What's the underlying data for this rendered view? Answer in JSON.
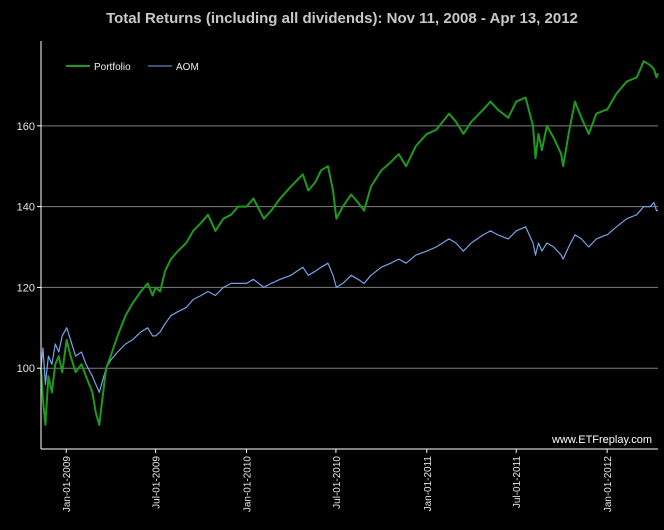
{
  "chart_data": {
    "type": "line",
    "title": "Total Returns (including all dividends): Nov 11, 2008 - Apr 13, 2012",
    "watermark": "www.ETFreplay.com",
    "x_tick_labels": [
      "Jan-01-2009",
      "Jul-01-2009",
      "Jan-01-2010",
      "Jul-01-2010",
      "Jan-01-2011",
      "Jul-01-2011",
      "Jan-01-2012"
    ],
    "x_tick_dates": [
      "2009-01-01",
      "2009-07-01",
      "2010-01-01",
      "2010-07-01",
      "2011-01-01",
      "2011-07-01",
      "2012-01-01"
    ],
    "xlim": [
      "2008-11-11",
      "2012-04-13"
    ],
    "ylim": [
      80,
      181
    ],
    "y_ticks": [
      100,
      120,
      140,
      160
    ],
    "grid": "horizontal",
    "legend_position": "top-left",
    "background": "#000000",
    "colors": {
      "axes": "#ffffff",
      "grid": "#7f7f7f",
      "title": "#c8c8c8"
    },
    "series": [
      {
        "name": "Portfolio",
        "color": "#1e9a1e",
        "points": [
          [
            "2008-11-11",
            100
          ],
          [
            "2008-11-15",
            92
          ],
          [
            "2008-11-20",
            86
          ],
          [
            "2008-11-26",
            98
          ],
          [
            "2008-12-03",
            94
          ],
          [
            "2008-12-10",
            101
          ],
          [
            "2008-12-17",
            103
          ],
          [
            "2008-12-24",
            99
          ],
          [
            "2009-01-02",
            107
          ],
          [
            "2009-01-10",
            103
          ],
          [
            "2009-01-20",
            99
          ],
          [
            "2009-02-01",
            101
          ],
          [
            "2009-02-10",
            98
          ],
          [
            "2009-02-23",
            94
          ],
          [
            "2009-03-02",
            89
          ],
          [
            "2009-03-09",
            86
          ],
          [
            "2009-03-16",
            93
          ],
          [
            "2009-03-23",
            100
          ],
          [
            "2009-04-01",
            103
          ],
          [
            "2009-04-15",
            108
          ],
          [
            "2009-05-01",
            113
          ],
          [
            "2009-05-15",
            116
          ],
          [
            "2009-06-01",
            119
          ],
          [
            "2009-06-15",
            121
          ],
          [
            "2009-06-25",
            118
          ],
          [
            "2009-07-01",
            120
          ],
          [
            "2009-07-10",
            119
          ],
          [
            "2009-07-20",
            124
          ],
          [
            "2009-08-01",
            127
          ],
          [
            "2009-08-15",
            129
          ],
          [
            "2009-09-01",
            131
          ],
          [
            "2009-09-15",
            134
          ],
          [
            "2009-10-01",
            136
          ],
          [
            "2009-10-15",
            138
          ],
          [
            "2009-10-30",
            134
          ],
          [
            "2009-11-15",
            137
          ],
          [
            "2009-12-01",
            138
          ],
          [
            "2009-12-15",
            140
          ],
          [
            "2010-01-01",
            140
          ],
          [
            "2010-01-15",
            142
          ],
          [
            "2010-02-05",
            137
          ],
          [
            "2010-02-20",
            139
          ],
          [
            "2010-03-10",
            142
          ],
          [
            "2010-04-01",
            145
          ],
          [
            "2010-04-25",
            148
          ],
          [
            "2010-05-06",
            144
          ],
          [
            "2010-05-20",
            146
          ],
          [
            "2010-06-01",
            149
          ],
          [
            "2010-06-15",
            150
          ],
          [
            "2010-06-25",
            144
          ],
          [
            "2010-07-02",
            137
          ],
          [
            "2010-07-15",
            140
          ],
          [
            "2010-08-01",
            143
          ],
          [
            "2010-08-15",
            141
          ],
          [
            "2010-08-27",
            139
          ],
          [
            "2010-09-10",
            145
          ],
          [
            "2010-10-01",
            149
          ],
          [
            "2010-10-20",
            151
          ],
          [
            "2010-11-05",
            153
          ],
          [
            "2010-11-20",
            150
          ],
          [
            "2010-12-10",
            155
          ],
          [
            "2011-01-01",
            158
          ],
          [
            "2011-01-20",
            159
          ],
          [
            "2011-02-15",
            163
          ],
          [
            "2011-03-01",
            161
          ],
          [
            "2011-03-16",
            158
          ],
          [
            "2011-04-01",
            161
          ],
          [
            "2011-04-25",
            164
          ],
          [
            "2011-05-10",
            166
          ],
          [
            "2011-05-25",
            164
          ],
          [
            "2011-06-15",
            162
          ],
          [
            "2011-07-01",
            166
          ],
          [
            "2011-07-20",
            167
          ],
          [
            "2011-08-04",
            160
          ],
          [
            "2011-08-09",
            152
          ],
          [
            "2011-08-15",
            158
          ],
          [
            "2011-08-22",
            154
          ],
          [
            "2011-09-01",
            160
          ],
          [
            "2011-09-15",
            157
          ],
          [
            "2011-09-30",
            153
          ],
          [
            "2011-10-04",
            150
          ],
          [
            "2011-10-15",
            158
          ],
          [
            "2011-10-28",
            166
          ],
          [
            "2011-11-10",
            162
          ],
          [
            "2011-11-25",
            158
          ],
          [
            "2011-12-10",
            163
          ],
          [
            "2011-12-30",
            164
          ],
          [
            "2012-01-01",
            164
          ],
          [
            "2012-01-20",
            168
          ],
          [
            "2012-02-10",
            171
          ],
          [
            "2012-03-01",
            172
          ],
          [
            "2012-03-15",
            176
          ],
          [
            "2012-03-28",
            175
          ],
          [
            "2012-04-05",
            174
          ],
          [
            "2012-04-10",
            172
          ],
          [
            "2012-04-13",
            173
          ]
        ]
      },
      {
        "name": "AOM",
        "color": "#7aa2e8",
        "points": [
          [
            "2008-11-11",
            100
          ],
          [
            "2008-11-15",
            105
          ],
          [
            "2008-11-20",
            96
          ],
          [
            "2008-11-26",
            103
          ],
          [
            "2008-12-03",
            101
          ],
          [
            "2008-12-10",
            106
          ],
          [
            "2008-12-17",
            104
          ],
          [
            "2008-12-24",
            108
          ],
          [
            "2009-01-02",
            110
          ],
          [
            "2009-01-10",
            107
          ],
          [
            "2009-01-20",
            103
          ],
          [
            "2009-02-01",
            104
          ],
          [
            "2009-02-10",
            101
          ],
          [
            "2009-02-23",
            98
          ],
          [
            "2009-03-02",
            96
          ],
          [
            "2009-03-09",
            94
          ],
          [
            "2009-03-16",
            97
          ],
          [
            "2009-03-23",
            100
          ],
          [
            "2009-04-01",
            102
          ],
          [
            "2009-04-15",
            104
          ],
          [
            "2009-05-01",
            106
          ],
          [
            "2009-05-15",
            107
          ],
          [
            "2009-06-01",
            109
          ],
          [
            "2009-06-15",
            110
          ],
          [
            "2009-06-25",
            108
          ],
          [
            "2009-07-01",
            108
          ],
          [
            "2009-07-10",
            109
          ],
          [
            "2009-07-20",
            111
          ],
          [
            "2009-08-01",
            113
          ],
          [
            "2009-08-15",
            114
          ],
          [
            "2009-09-01",
            115
          ],
          [
            "2009-09-15",
            117
          ],
          [
            "2009-10-01",
            118
          ],
          [
            "2009-10-15",
            119
          ],
          [
            "2009-10-30",
            118
          ],
          [
            "2009-11-15",
            120
          ],
          [
            "2009-12-01",
            121
          ],
          [
            "2009-12-15",
            121
          ],
          [
            "2010-01-01",
            121
          ],
          [
            "2010-01-15",
            122
          ],
          [
            "2010-02-05",
            120
          ],
          [
            "2010-02-20",
            121
          ],
          [
            "2010-03-10",
            122
          ],
          [
            "2010-04-01",
            123
          ],
          [
            "2010-04-25",
            125
          ],
          [
            "2010-05-06",
            123
          ],
          [
            "2010-05-20",
            124
          ],
          [
            "2010-06-01",
            125
          ],
          [
            "2010-06-15",
            126
          ],
          [
            "2010-06-25",
            123
          ],
          [
            "2010-07-02",
            120
          ],
          [
            "2010-07-15",
            121
          ],
          [
            "2010-08-01",
            123
          ],
          [
            "2010-08-15",
            122
          ],
          [
            "2010-08-27",
            121
          ],
          [
            "2010-09-10",
            123
          ],
          [
            "2010-10-01",
            125
          ],
          [
            "2010-10-20",
            126
          ],
          [
            "2010-11-05",
            127
          ],
          [
            "2010-11-20",
            126
          ],
          [
            "2010-12-10",
            128
          ],
          [
            "2011-01-01",
            129
          ],
          [
            "2011-01-20",
            130
          ],
          [
            "2011-02-15",
            132
          ],
          [
            "2011-03-01",
            131
          ],
          [
            "2011-03-16",
            129
          ],
          [
            "2011-04-01",
            131
          ],
          [
            "2011-04-25",
            133
          ],
          [
            "2011-05-10",
            134
          ],
          [
            "2011-05-25",
            133
          ],
          [
            "2011-06-15",
            132
          ],
          [
            "2011-07-01",
            134
          ],
          [
            "2011-07-20",
            135
          ],
          [
            "2011-08-04",
            131
          ],
          [
            "2011-08-09",
            128
          ],
          [
            "2011-08-15",
            131
          ],
          [
            "2011-08-22",
            129
          ],
          [
            "2011-09-01",
            131
          ],
          [
            "2011-09-15",
            130
          ],
          [
            "2011-09-30",
            128
          ],
          [
            "2011-10-04",
            127
          ],
          [
            "2011-10-15",
            130
          ],
          [
            "2011-10-28",
            133
          ],
          [
            "2011-11-10",
            132
          ],
          [
            "2011-11-25",
            130
          ],
          [
            "2011-12-10",
            132
          ],
          [
            "2011-12-30",
            133
          ],
          [
            "2012-01-01",
            133
          ],
          [
            "2012-01-20",
            135
          ],
          [
            "2012-02-10",
            137
          ],
          [
            "2012-03-01",
            138
          ],
          [
            "2012-03-15",
            140
          ],
          [
            "2012-03-28",
            140
          ],
          [
            "2012-04-05",
            141
          ],
          [
            "2012-04-10",
            139
          ],
          [
            "2012-04-13",
            139
          ]
        ]
      }
    ]
  }
}
